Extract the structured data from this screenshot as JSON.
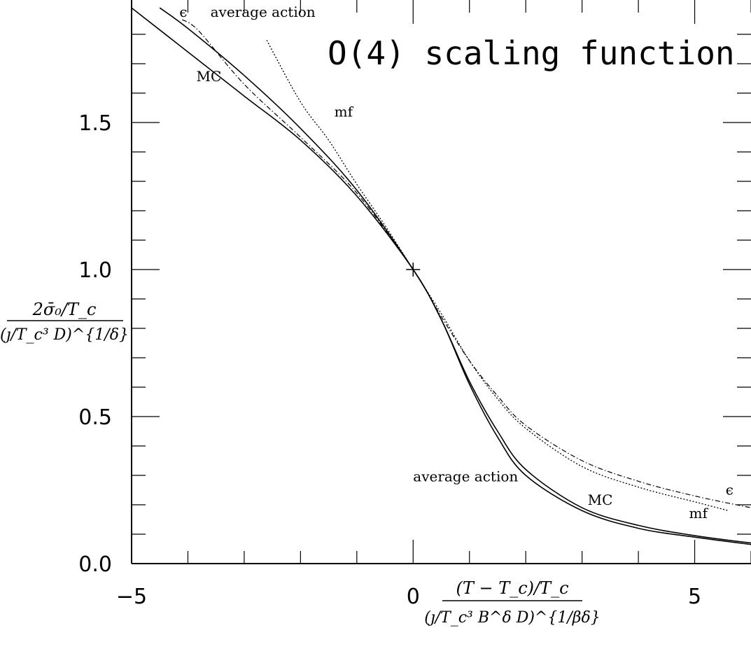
{
  "chart_data": {
    "type": "line",
    "title": "O(4) scaling function",
    "xlabel_numerator": "(T − T_c)/T_c",
    "xlabel_denominator": "(ȷ/T_c³ B^δ D)^{1/βδ}",
    "ylabel_numerator": "2σ̄₀/T_c",
    "ylabel_denominator": "(ȷ/T_c³ D)^{1/δ}",
    "xlim": [
      -5,
      6
    ],
    "ylim": [
      0,
      1.9
    ],
    "x_ticks": [
      -5,
      0,
      5
    ],
    "x_tick_labels": [
      "−5",
      "0",
      "5"
    ],
    "y_ticks": [
      0.0,
      0.5,
      1.0,
      1.5
    ],
    "y_tick_labels": [
      "0.0",
      "0.5",
      "1.0",
      "1.5"
    ],
    "marker": {
      "x": 0,
      "y": 1.0,
      "symbol": "+"
    },
    "series": [
      {
        "name": "MC",
        "style": "solid",
        "x": [
          -5.0,
          -4.0,
          -3.0,
          -2.0,
          -1.0,
          0.0,
          0.5,
          1.0,
          1.5,
          2.0,
          3.0,
          4.0,
          5.0,
          6.0
        ],
        "y": [
          1.89,
          1.74,
          1.59,
          1.44,
          1.25,
          1.0,
          0.83,
          0.62,
          0.45,
          0.32,
          0.19,
          0.13,
          0.095,
          0.07
        ]
      },
      {
        "name": "average action",
        "style": "solid",
        "x": [
          -4.5,
          -4.0,
          -3.0,
          -2.0,
          -1.0,
          0.0,
          0.5,
          1.0,
          1.5,
          2.0,
          3.0,
          4.0,
          5.0,
          6.0
        ],
        "y": [
          1.89,
          1.82,
          1.66,
          1.48,
          1.27,
          1.0,
          0.83,
          0.61,
          0.43,
          0.3,
          0.18,
          0.12,
          0.09,
          0.065
        ]
      },
      {
        "name": "ϵ",
        "style": "dashdot",
        "x": [
          -4.1,
          -3.8,
          -3.0,
          -2.0,
          -1.0,
          0.0,
          0.5,
          1.0,
          1.5,
          2.0,
          3.0,
          4.0,
          5.0,
          6.0
        ],
        "y": [
          1.85,
          1.81,
          1.63,
          1.45,
          1.26,
          1.0,
          0.84,
          0.69,
          0.57,
          0.47,
          0.35,
          0.28,
          0.23,
          0.19
        ]
      },
      {
        "name": "mf",
        "style": "dotted",
        "x": [
          -2.6,
          -2.0,
          -1.5,
          -1.0,
          -0.5,
          0.0,
          0.5,
          1.0,
          1.5,
          2.0,
          3.0,
          4.0,
          5.0,
          5.6
        ],
        "y": [
          1.78,
          1.57,
          1.44,
          1.29,
          1.15,
          1.0,
          0.85,
          0.69,
          0.56,
          0.46,
          0.33,
          0.26,
          0.21,
          0.18
        ]
      }
    ],
    "curve_labels": [
      {
        "text": "ϵ",
        "x": -4.15,
        "y": 1.86
      },
      {
        "text": "average action",
        "x": -3.6,
        "y": 1.86
      },
      {
        "text": "MC",
        "x": -3.85,
        "y": 1.64
      },
      {
        "text": "mf",
        "x": -1.4,
        "y": 1.52
      },
      {
        "text": "average action",
        "x": 0.0,
        "y": 0.28
      },
      {
        "text": "MC",
        "x": 3.1,
        "y": 0.2
      },
      {
        "text": "mf",
        "x": 4.9,
        "y": 0.155
      },
      {
        "text": "ϵ",
        "x": 5.55,
        "y": 0.235
      }
    ]
  }
}
